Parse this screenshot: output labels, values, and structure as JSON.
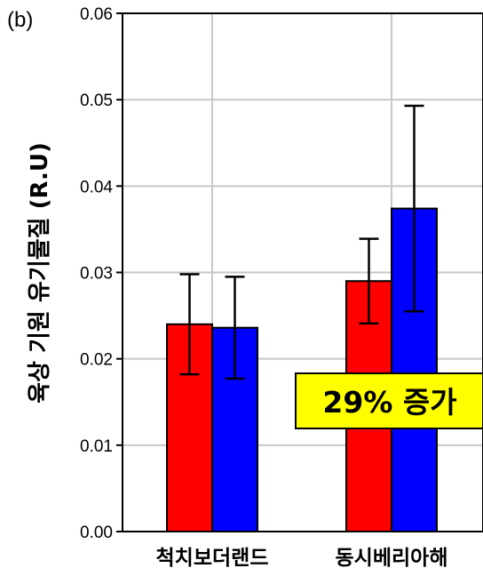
{
  "panel_label": "(b)",
  "chart_data": {
    "type": "bar",
    "title": "",
    "xlabel": "",
    "ylabel": "육상 기원 유기물질 (R.U)",
    "ylim": [
      0,
      0.06
    ],
    "yticks": [
      "0.00",
      "0.01",
      "0.02",
      "0.03",
      "0.04",
      "0.05",
      "0.06"
    ],
    "ytick_values": [
      0,
      0.01,
      0.02,
      0.03,
      0.04,
      0.05,
      0.06
    ],
    "grid": true,
    "categories": [
      "척치보더랜드",
      "동시베리아해"
    ],
    "series": [
      {
        "color": "#ff0000",
        "values": [
          0.024,
          0.029
        ],
        "error": [
          0.0058,
          0.0049
        ]
      },
      {
        "color": "#0000ff",
        "values": [
          0.0236,
          0.0374
        ],
        "error": [
          0.0059,
          0.0119
        ]
      }
    ],
    "annotation": {
      "text": "29% 증가",
      "background": "#ffff00"
    }
  }
}
